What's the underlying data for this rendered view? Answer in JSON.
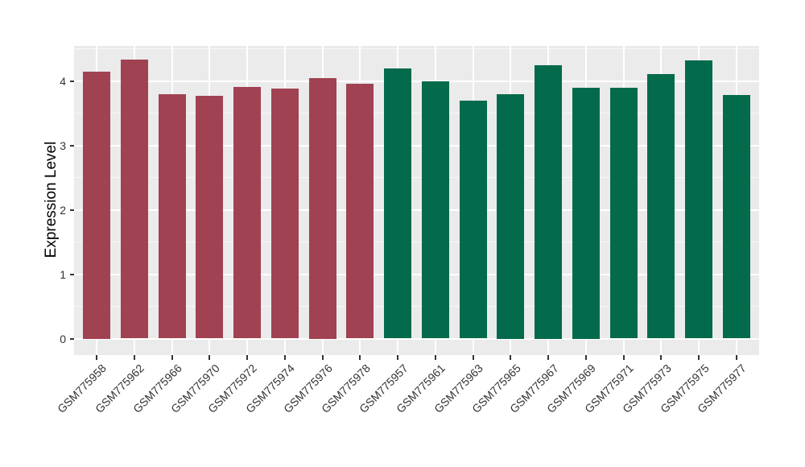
{
  "chart_data": {
    "type": "bar",
    "title": "",
    "xlabel": "",
    "ylabel": "Expression Level",
    "categories": [
      "GSM775958",
      "GSM775962",
      "GSM775966",
      "GSM775970",
      "GSM775972",
      "GSM775974",
      "GSM775976",
      "GSM775978",
      "GSM775957",
      "GSM775961",
      "GSM775963",
      "GSM775965",
      "GSM775967",
      "GSM775969",
      "GSM775971",
      "GSM775973",
      "GSM775975",
      "GSM775977"
    ],
    "values": [
      4.15,
      4.33,
      3.79,
      3.77,
      3.91,
      3.88,
      4.05,
      3.96,
      4.19,
      3.99,
      3.69,
      3.8,
      4.25,
      3.9,
      3.89,
      4.11,
      4.32,
      3.78
    ],
    "bar_colors": [
      "#A04252",
      "#A04252",
      "#A04252",
      "#A04252",
      "#A04252",
      "#A04252",
      "#A04252",
      "#A04252",
      "#046A4C",
      "#046A4C",
      "#046A4C",
      "#046A4C",
      "#046A4C",
      "#046A4C",
      "#046A4C",
      "#046A4C",
      "#046A4C",
      "#046A4C"
    ],
    "yticks": [
      0,
      1,
      2,
      3,
      4
    ],
    "y_minor_ticks": [
      0.5,
      1.5,
      2.5,
      3.5,
      4.5
    ],
    "ylim": [
      -0.26,
      4.54
    ],
    "grid": "horizontal major and minor white lines, vertical major white lines, on grey panel",
    "legend": "none"
  },
  "style": {
    "panel_background": "#EBEBEB",
    "grid_major_color": "#FFFFFF",
    "grid_minor_color": "#F7F7F7",
    "bar_color_group1": "#A04252",
    "bar_color_group2": "#046A4C",
    "tick_text_color": "#333333",
    "axis_title_color": "#000000",
    "figure_background": "#FFFFFF"
  }
}
